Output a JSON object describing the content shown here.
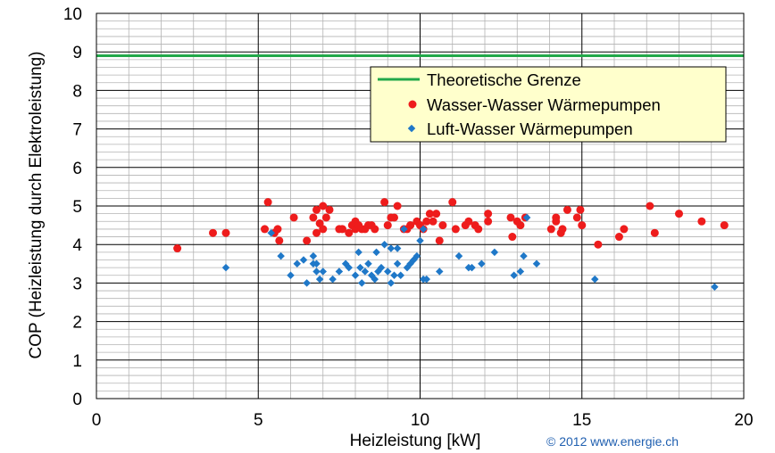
{
  "chart_data": {
    "type": "scatter",
    "xlabel": "Heizleistung  [kW]",
    "ylabel": "COP (Heizleistung durch Elektroleistung)",
    "xlim": [
      0,
      20
    ],
    "ylim": [
      0,
      10
    ],
    "x_ticks": [
      "0",
      "5",
      "10",
      "15",
      "20"
    ],
    "y_ticks": [
      "0",
      "1",
      "2",
      "3",
      "4",
      "5",
      "6",
      "7",
      "8",
      "9",
      "10"
    ],
    "grid": true,
    "legend_position": "top-right",
    "credit": "© 2012 www.energie.ch",
    "reference_line": {
      "name": "Theoretische Grenze",
      "y": 8.9,
      "color": "#22a84a"
    },
    "series": [
      {
        "name": "Wasser-Wasser Wärmepumpen",
        "marker": "circle",
        "color": "#ee1c1c",
        "points": [
          [
            2.5,
            3.9
          ],
          [
            3.6,
            4.3
          ],
          [
            4.0,
            4.3
          ],
          [
            5.2,
            4.4
          ],
          [
            5.3,
            5.1
          ],
          [
            5.5,
            4.3
          ],
          [
            5.6,
            4.4
          ],
          [
            5.65,
            4.1
          ],
          [
            6.1,
            4.7
          ],
          [
            6.5,
            4.1
          ],
          [
            6.7,
            4.7
          ],
          [
            6.8,
            4.9
          ],
          [
            6.8,
            4.3
          ],
          [
            6.9,
            4.55
          ],
          [
            7.0,
            5.0
          ],
          [
            7.0,
            4.4
          ],
          [
            7.1,
            4.7
          ],
          [
            7.2,
            4.9
          ],
          [
            7.5,
            4.4
          ],
          [
            7.6,
            4.4
          ],
          [
            7.8,
            4.3
          ],
          [
            7.9,
            4.5
          ],
          [
            8.0,
            4.6
          ],
          [
            8.0,
            4.4
          ],
          [
            8.1,
            4.5
          ],
          [
            8.2,
            4.4
          ],
          [
            8.3,
            4.4
          ],
          [
            8.4,
            4.5
          ],
          [
            8.5,
            4.5
          ],
          [
            8.6,
            4.4
          ],
          [
            8.9,
            5.1
          ],
          [
            9.0,
            4.5
          ],
          [
            9.1,
            4.7
          ],
          [
            9.2,
            4.7
          ],
          [
            9.3,
            5.0
          ],
          [
            9.5,
            4.4
          ],
          [
            9.6,
            4.4
          ],
          [
            9.7,
            4.5
          ],
          [
            9.9,
            4.6
          ],
          [
            10.0,
            4.5
          ],
          [
            10.1,
            4.4
          ],
          [
            10.2,
            4.6
          ],
          [
            10.3,
            4.8
          ],
          [
            10.4,
            4.6
          ],
          [
            10.5,
            4.8
          ],
          [
            10.6,
            4.1
          ],
          [
            10.7,
            4.5
          ],
          [
            11.0,
            5.1
          ],
          [
            11.1,
            4.4
          ],
          [
            11.4,
            4.5
          ],
          [
            11.5,
            4.6
          ],
          [
            11.7,
            4.5
          ],
          [
            11.8,
            4.4
          ],
          [
            12.1,
            4.8
          ],
          [
            12.1,
            4.6
          ],
          [
            12.8,
            4.7
          ],
          [
            12.85,
            4.2
          ],
          [
            13.0,
            4.6
          ],
          [
            13.1,
            4.5
          ],
          [
            13.25,
            4.7
          ],
          [
            14.05,
            4.4
          ],
          [
            14.2,
            4.6
          ],
          [
            14.2,
            4.7
          ],
          [
            14.35,
            4.3
          ],
          [
            14.4,
            4.4
          ],
          [
            14.55,
            4.9
          ],
          [
            14.85,
            4.7
          ],
          [
            14.95,
            4.9
          ],
          [
            15.0,
            4.5
          ],
          [
            15.5,
            4.0
          ],
          [
            16.15,
            4.2
          ],
          [
            16.3,
            4.4
          ],
          [
            17.1,
            5.0
          ],
          [
            17.25,
            4.3
          ],
          [
            18.0,
            4.8
          ],
          [
            18.7,
            4.6
          ],
          [
            19.4,
            4.5
          ]
        ]
      },
      {
        "name": "Luft-Wasser Wärmepumpen",
        "marker": "diamond",
        "color": "#1f78c8",
        "points": [
          [
            4.0,
            3.4
          ],
          [
            5.4,
            4.3
          ],
          [
            5.7,
            3.7
          ],
          [
            6.0,
            3.2
          ],
          [
            6.2,
            3.5
          ],
          [
            6.4,
            3.6
          ],
          [
            6.5,
            3.0
          ],
          [
            6.7,
            3.7
          ],
          [
            6.7,
            3.5
          ],
          [
            6.8,
            3.3
          ],
          [
            6.8,
            3.5
          ],
          [
            6.9,
            3.1
          ],
          [
            7.0,
            3.3
          ],
          [
            7.3,
            3.1
          ],
          [
            7.5,
            3.3
          ],
          [
            7.7,
            3.5
          ],
          [
            7.8,
            3.4
          ],
          [
            8.0,
            3.2
          ],
          [
            8.1,
            3.8
          ],
          [
            8.15,
            3.4
          ],
          [
            8.2,
            3.0
          ],
          [
            8.3,
            3.3
          ],
          [
            8.4,
            3.5
          ],
          [
            8.5,
            3.2
          ],
          [
            8.6,
            3.1
          ],
          [
            8.65,
            3.8
          ],
          [
            8.7,
            3.3
          ],
          [
            8.8,
            3.4
          ],
          [
            8.9,
            4.0
          ],
          [
            9.0,
            3.3
          ],
          [
            9.1,
            3.9
          ],
          [
            9.1,
            3.0
          ],
          [
            9.2,
            3.2
          ],
          [
            9.3,
            3.9
          ],
          [
            9.3,
            3.5
          ],
          [
            9.4,
            3.2
          ],
          [
            9.5,
            4.4
          ],
          [
            9.6,
            3.4
          ],
          [
            9.7,
            3.5
          ],
          [
            9.8,
            3.6
          ],
          [
            9.9,
            3.7
          ],
          [
            10.0,
            4.1
          ],
          [
            10.1,
            4.4
          ],
          [
            10.1,
            3.1
          ],
          [
            10.2,
            3.1
          ],
          [
            10.6,
            3.3
          ],
          [
            11.2,
            3.7
          ],
          [
            11.5,
            3.4
          ],
          [
            11.6,
            3.4
          ],
          [
            11.9,
            3.5
          ],
          [
            12.3,
            3.8
          ],
          [
            12.9,
            3.2
          ],
          [
            13.1,
            3.3
          ],
          [
            13.2,
            3.7
          ],
          [
            13.3,
            4.7
          ],
          [
            13.6,
            3.5
          ],
          [
            15.4,
            3.1
          ],
          [
            19.1,
            2.9
          ]
        ]
      }
    ]
  }
}
